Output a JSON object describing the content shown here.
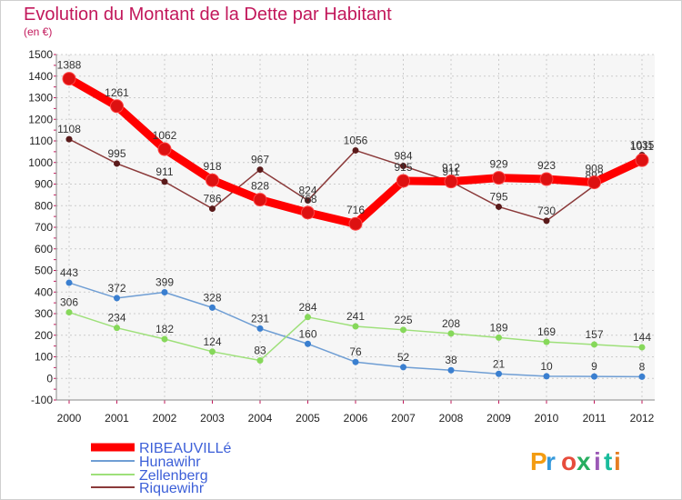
{
  "chart_data": {
    "type": "line",
    "title": "Evolution du Montant de la Dette par Habitant",
    "subtitle": "(en €)",
    "x": [
      "2000",
      "2001",
      "2002",
      "2003",
      "2004",
      "2005",
      "2006",
      "2007",
      "2008",
      "2009",
      "2010",
      "2011",
      "2012"
    ],
    "yticks": [
      "-100",
      "0",
      "100",
      "200",
      "300",
      "400",
      "500",
      "600",
      "700",
      "800",
      "900",
      "1000",
      "1100",
      "1200",
      "1300",
      "1400",
      "1500"
    ],
    "ylim": [
      -100,
      1500
    ],
    "grid": true,
    "legend_position": "bottom-left",
    "series": [
      {
        "name": "RIBEAUVILLé",
        "color": "#ff0000",
        "marker": "#dd1111",
        "width": 9,
        "values": [
          1388,
          1261,
          1062,
          918,
          828,
          768,
          716,
          915,
          912,
          929,
          923,
          908,
          1011
        ],
        "labels": [
          "1388",
          "1261",
          "1062",
          "918",
          "828",
          "768",
          "716",
          "915",
          "912",
          "929",
          "923",
          "908",
          "1011"
        ]
      },
      {
        "name": "Hunawihr",
        "color": "#6f9ed4",
        "marker": "#3a7fd0",
        "width": 1.5,
        "values": [
          443,
          372,
          399,
          328,
          231,
          160,
          76,
          52,
          38,
          21,
          10,
          9,
          8
        ],
        "labels": [
          "443",
          "372",
          "399",
          "328",
          "231",
          "160",
          "76",
          "52",
          "38",
          "21",
          "10",
          "9",
          "8"
        ]
      },
      {
        "name": "Zellenberg",
        "color": "#9ee07a",
        "marker": "#86d85a",
        "width": 1.5,
        "values": [
          306,
          234,
          182,
          124,
          83,
          284,
          241,
          225,
          208,
          189,
          169,
          157,
          144
        ],
        "labels": [
          "306",
          "234",
          "182",
          "124",
          "83",
          "284",
          "241",
          "225",
          "208",
          "189",
          "169",
          "157",
          "144"
        ]
      },
      {
        "name": "Riquewihr",
        "color": "#8b3a3a",
        "marker": "#5a1a1a",
        "width": 1.5,
        "values": [
          1108,
          995,
          911,
          786,
          967,
          824,
          1056,
          984,
          911,
          795,
          730,
          893,
          1035
        ],
        "labels": [
          "1108",
          "995",
          "911",
          "786",
          "967",
          "824",
          "1056",
          "984",
          "911",
          "795",
          "730",
          "893",
          "1035"
        ]
      }
    ]
  },
  "logo_text": "Proxiti",
  "logo_colors": [
    "#f39c12",
    "#3498db",
    "#e74c3c",
    "#27ae60",
    "#9b59b6",
    "#1abc9c",
    "#e67e22"
  ]
}
